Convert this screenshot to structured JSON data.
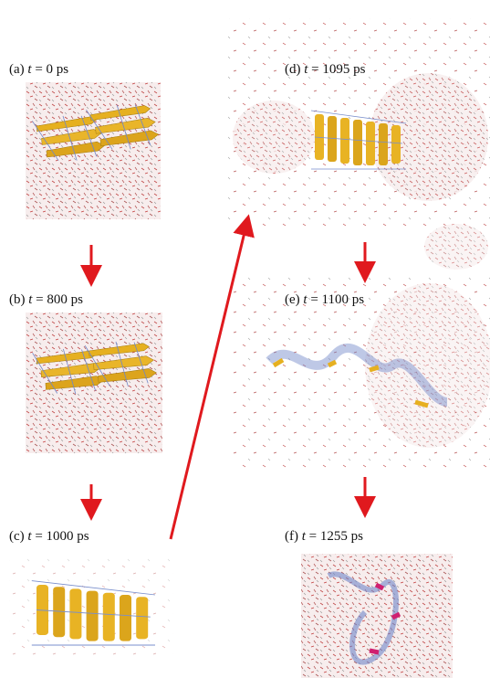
{
  "panels": [
    {
      "label": "(a)",
      "symbol": "t",
      "value": "= 0 ps"
    },
    {
      "label": "(b)",
      "symbol": "t",
      "value": "= 800 ps"
    },
    {
      "label": "(c)",
      "symbol": "t",
      "value": "= 1000 ps"
    },
    {
      "label": "(d)",
      "symbol": "t",
      "value": "= 1095 ps"
    },
    {
      "label": "(e)",
      "symbol": "t",
      "value": "= 1100 ps"
    },
    {
      "label": "(f)",
      "symbol": "t",
      "value": "= 1255 ps"
    }
  ]
}
